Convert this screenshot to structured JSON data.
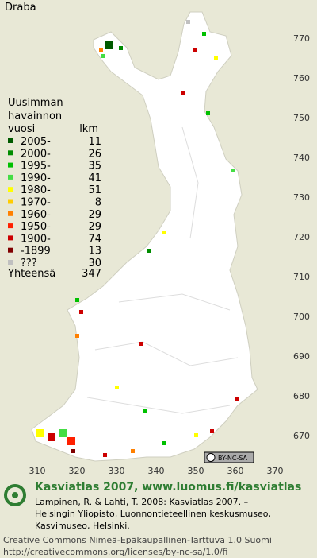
{
  "title": "Draba",
  "legend": {
    "heading": [
      "Uusimman",
      "havainnon"
    ],
    "period_header": "vuosi",
    "count_header": "lkm",
    "rows": [
      {
        "label": "2005-",
        "count": 11,
        "color": "#005a00"
      },
      {
        "label": "2000-",
        "count": 26,
        "color": "#008c00"
      },
      {
        "label": "1995-",
        "count": 35,
        "color": "#00c000"
      },
      {
        "label": "1990-",
        "count": 41,
        "color": "#44dd44"
      },
      {
        "label": "1980-",
        "count": 51,
        "color": "#ffff00"
      },
      {
        "label": "1970-",
        "count": 8,
        "color": "#ffcc00"
      },
      {
        "label": "1960-",
        "count": 29,
        "color": "#ff8000"
      },
      {
        "label": "1950-",
        "count": 29,
        "color": "#ff2000"
      },
      {
        "label": "1900-",
        "count": 74,
        "color": "#cc0000"
      },
      {
        "label": "-1899",
        "count": 13,
        "color": "#800000"
      },
      {
        "label": "???",
        "count": 30,
        "color": "#c0c0c0"
      }
    ],
    "total_label": "Yhteensä",
    "total": 347
  },
  "axes": {
    "x_ticks": [
      310,
      320,
      330,
      340,
      350,
      360,
      370
    ],
    "y_ticks": [
      770,
      760,
      750,
      740,
      730,
      720,
      710,
      700,
      690,
      680,
      670
    ]
  },
  "badge": "BY-NC-SA",
  "footer": {
    "headline": "Kasviatlas 2007, www.luomus.fi/kasviatlas",
    "citation": [
      "Lampinen, R. & Lahti, T. 2008: Kasviatlas 2007. –",
      "Helsingin Yliopisto, Luonnontieteellinen keskusmuseo,",
      "Kasvimuseo, Helsinki."
    ],
    "license": "Creative Commons Nimeä-Epäkaupallinen-Tarttuva 1.0 Suomi",
    "url": "http://creativecommons.org/licenses/by-nc-sa/1.0/fi"
  }
}
